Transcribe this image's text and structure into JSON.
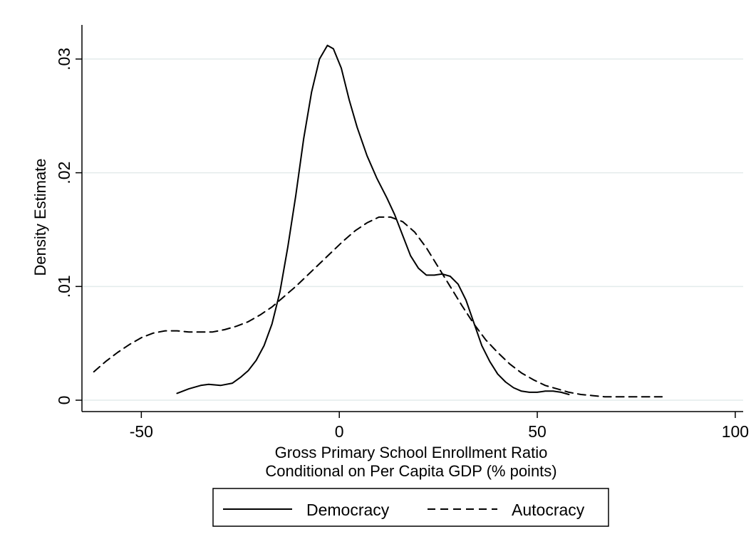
{
  "chart_data": {
    "type": "line",
    "xlabel": [
      "Gross Primary School Enrollment Ratio",
      "Conditional on Per Capita GDP (% points)"
    ],
    "ylabel": "Density Estimate",
    "xlim": [
      -65,
      102
    ],
    "ylim": [
      -0.001,
      0.033
    ],
    "x_ticks": [
      -50,
      0,
      50,
      100
    ],
    "x_tick_labels": [
      "-50",
      "0",
      "50",
      "100"
    ],
    "y_ticks": [
      0,
      0.01,
      0.02,
      0.03
    ],
    "y_tick_labels": [
      "0",
      ".01",
      ".02",
      ".03"
    ],
    "grid": "horizontal",
    "legend_position": "bottom",
    "series": [
      {
        "name": "Democracy",
        "style": "solid",
        "color": "#000000",
        "points": [
          [
            -41,
            0.0006
          ],
          [
            -38,
            0.001
          ],
          [
            -35,
            0.0013
          ],
          [
            -33,
            0.0014
          ],
          [
            -30,
            0.0013
          ],
          [
            -27,
            0.0015
          ],
          [
            -25,
            0.002
          ],
          [
            -23,
            0.0026
          ],
          [
            -21,
            0.0035
          ],
          [
            -19,
            0.0048
          ],
          [
            -17,
            0.0067
          ],
          [
            -15,
            0.0095
          ],
          [
            -13,
            0.0135
          ],
          [
            -11,
            0.018
          ],
          [
            -9,
            0.023
          ],
          [
            -7,
            0.0271
          ],
          [
            -5,
            0.03
          ],
          [
            -3,
            0.0312
          ],
          [
            -1.5,
            0.0309
          ],
          [
            0.5,
            0.0292
          ],
          [
            2.5,
            0.0264
          ],
          [
            4.5,
            0.024
          ],
          [
            7,
            0.0215
          ],
          [
            9.5,
            0.0195
          ],
          [
            12,
            0.0178
          ],
          [
            14,
            0.0163
          ],
          [
            16,
            0.0145
          ],
          [
            18,
            0.0127
          ],
          [
            20,
            0.0116
          ],
          [
            22,
            0.011
          ],
          [
            24,
            0.011
          ],
          [
            26,
            0.0111
          ],
          [
            28,
            0.0109
          ],
          [
            30,
            0.0102
          ],
          [
            32,
            0.0088
          ],
          [
            34,
            0.0068
          ],
          [
            36,
            0.0048
          ],
          [
            38,
            0.0034
          ],
          [
            40,
            0.0023
          ],
          [
            42,
            0.0016
          ],
          [
            44,
            0.0011
          ],
          [
            46,
            0.0008
          ],
          [
            48,
            0.0007
          ],
          [
            50,
            0.0007
          ],
          [
            52,
            0.0008
          ],
          [
            54,
            0.0008
          ],
          [
            56,
            0.0007
          ],
          [
            58,
            0.0005
          ]
        ]
      },
      {
        "name": "Autocracy",
        "style": "dashed",
        "color": "#000000",
        "points": [
          [
            -62,
            0.0025
          ],
          [
            -59,
            0.0034
          ],
          [
            -56,
            0.0042
          ],
          [
            -53,
            0.0049
          ],
          [
            -50,
            0.0055
          ],
          [
            -47,
            0.0059
          ],
          [
            -44,
            0.0061
          ],
          [
            -41,
            0.0061
          ],
          [
            -38,
            0.006
          ],
          [
            -35,
            0.006
          ],
          [
            -32,
            0.006
          ],
          [
            -29,
            0.0062
          ],
          [
            -26,
            0.0065
          ],
          [
            -23,
            0.0069
          ],
          [
            -20,
            0.0075
          ],
          [
            -17,
            0.0082
          ],
          [
            -14,
            0.0091
          ],
          [
            -11,
            0.01
          ],
          [
            -8,
            0.011
          ],
          [
            -5,
            0.012
          ],
          [
            -2,
            0.013
          ],
          [
            1,
            0.014
          ],
          [
            4,
            0.0149
          ],
          [
            7,
            0.0156
          ],
          [
            10,
            0.0161
          ],
          [
            13,
            0.0161
          ],
          [
            16,
            0.0157
          ],
          [
            19,
            0.0148
          ],
          [
            22,
            0.0134
          ],
          [
            25,
            0.0117
          ],
          [
            28,
            0.01
          ],
          [
            31,
            0.0083
          ],
          [
            34,
            0.0067
          ],
          [
            37,
            0.0053
          ],
          [
            40,
            0.0042
          ],
          [
            43,
            0.0032
          ],
          [
            46,
            0.0024
          ],
          [
            49,
            0.0018
          ],
          [
            52,
            0.0013
          ],
          [
            55,
            0.001
          ],
          [
            58,
            0.0007
          ],
          [
            61,
            0.0005
          ],
          [
            64,
            0.0004
          ],
          [
            67,
            0.0003
          ],
          [
            70,
            0.0003
          ],
          [
            73,
            0.0003
          ],
          [
            76,
            0.0003
          ],
          [
            79,
            0.0003
          ],
          [
            81.5,
            0.0003
          ]
        ]
      }
    ]
  }
}
